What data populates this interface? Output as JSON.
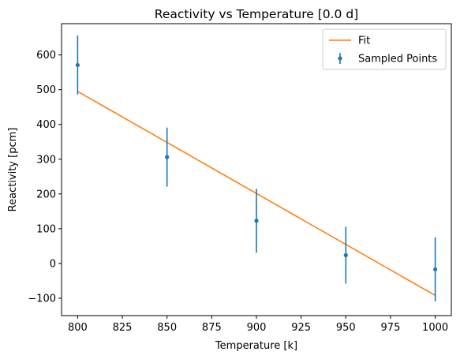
{
  "chart_data": {
    "type": "line",
    "title": "Reactivity vs Temperature [0.0 d]",
    "xlabel": "Temperature [k]",
    "ylabel": "Reactivity [pcm]",
    "xlim": [
      791,
      1009
    ],
    "ylim": [
      -150,
      690
    ],
    "xticks": [
      800,
      825,
      850,
      875,
      900,
      925,
      950,
      975,
      1000
    ],
    "yticks": [
      -100,
      0,
      100,
      200,
      300,
      400,
      500,
      600
    ],
    "grid": false,
    "legend_position": "top-right",
    "series": [
      {
        "name": "Fit",
        "kind": "line",
        "color": "#ff7f0e",
        "x": [
          800,
          1000
        ],
        "y": [
          495,
          -92
        ]
      },
      {
        "name": "Sampled Points",
        "kind": "errorbar",
        "color": "#1f77b4",
        "x": [
          800,
          850,
          900,
          950,
          1000
        ],
        "y": [
          571,
          306,
          123,
          24,
          -17
        ],
        "yerr": [
          85,
          85,
          92,
          82,
          92
        ]
      }
    ]
  }
}
